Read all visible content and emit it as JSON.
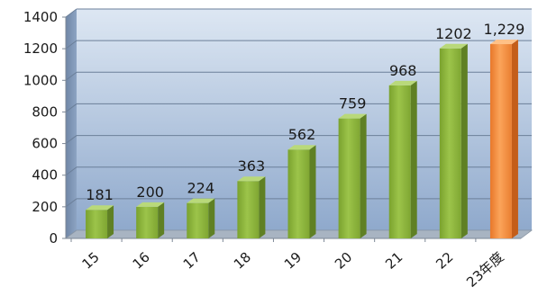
{
  "chart_data": {
    "type": "bar",
    "title": "",
    "xlabel": "",
    "ylabel": "",
    "categories": [
      "15",
      "16",
      "17",
      "18",
      "19",
      "20",
      "21",
      "22",
      "23年度"
    ],
    "values": [
      181,
      200,
      224,
      363,
      562,
      759,
      968,
      1202,
      1229
    ],
    "value_labels": [
      "181",
      "200",
      "224",
      "363",
      "562",
      "759",
      "968",
      "1202",
      "1,229"
    ],
    "ylim": [
      0,
      1400
    ],
    "yticks": [
      0,
      200,
      400,
      600,
      800,
      1000,
      1200,
      1400
    ],
    "grid": true,
    "legend": "none",
    "style": "3d-column",
    "colors": {
      "bar": "#8fb63b",
      "bar_highlight": "#f79646",
      "highlight_index": 8,
      "plot_background": "#9cb6d8",
      "gridline": "#6b7f99",
      "floor": "#a8b4c2",
      "value_label_highlight": "#1e7a5a"
    }
  }
}
